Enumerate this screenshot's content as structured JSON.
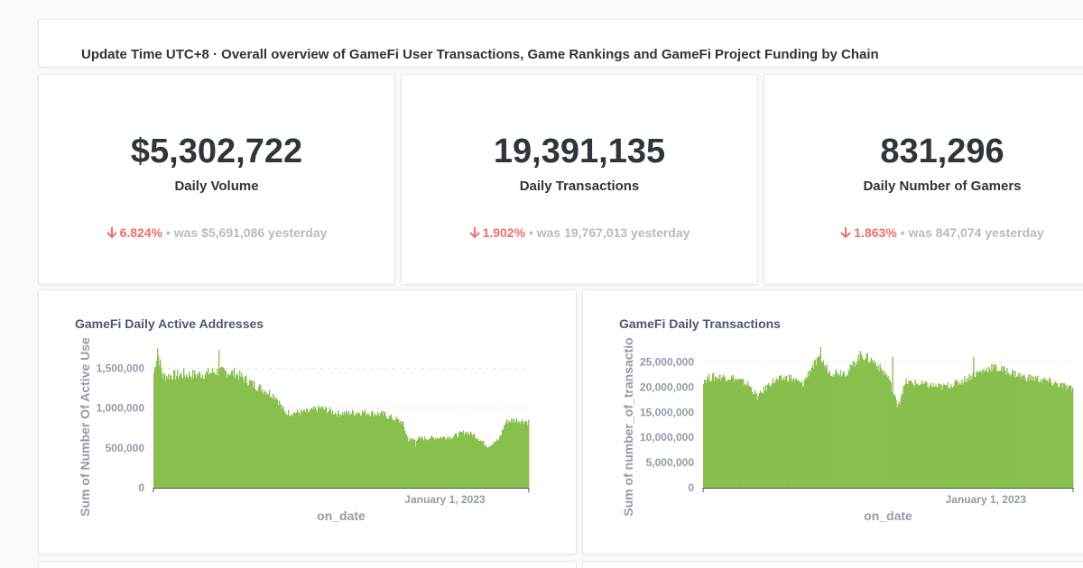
{
  "header": {
    "title": "Update Time UTC+8 · Overall overview of GameFi User Transactions, Game Rankings and GameFi Project Funding by Chain"
  },
  "kpis": [
    {
      "value": "$5,302,722",
      "label": "Daily Volume",
      "change": "6.824%",
      "was": "was $5,691,086",
      "suffix": "yesterday"
    },
    {
      "value": "19,391,135",
      "label": "Daily Transactions",
      "change": "1.902%",
      "was": "was 19,767,013",
      "suffix": "yesterday"
    },
    {
      "value": "831,296",
      "label": "Daily Number of Gamers",
      "change": "1.863%",
      "was": "was 847,074",
      "suffix": "yesterday"
    }
  ],
  "colors": {
    "bar": "#88bf4d",
    "down": "#ed6e6e",
    "muted": "#b8bbc3",
    "axis_text": "#949aab"
  },
  "chart_data": [
    {
      "type": "bar",
      "title": "GameFi Daily Active Addresses",
      "xlabel": "on_date",
      "ylabel": "Sum of Number Of Active Use",
      "ylim": [
        0,
        1800000
      ],
      "yticks": [
        0,
        500000,
        1000000,
        1500000
      ],
      "ytick_labels": [
        "0",
        "500,000",
        "1,000,000",
        "1,500,000"
      ],
      "xtick_labels": [
        "January 1, 2023"
      ],
      "grid": true,
      "anchors": [
        [
          0,
          1450000
        ],
        [
          4,
          1700000
        ],
        [
          10,
          1400000
        ],
        [
          30,
          1420000
        ],
        [
          50,
          1420000
        ],
        [
          70,
          1460000
        ],
        [
          90,
          1440000
        ],
        [
          110,
          1300000
        ],
        [
          135,
          1150000
        ],
        [
          145,
          940000
        ],
        [
          170,
          950000
        ],
        [
          185,
          1000000
        ],
        [
          205,
          930000
        ],
        [
          230,
          950000
        ],
        [
          255,
          920000
        ],
        [
          275,
          820000
        ],
        [
          282,
          600000
        ],
        [
          300,
          620000
        ],
        [
          330,
          640000
        ],
        [
          345,
          700000
        ],
        [
          355,
          660000
        ],
        [
          370,
          520000
        ],
        [
          382,
          600000
        ],
        [
          390,
          830000
        ],
        [
          400,
          850000
        ],
        [
          415,
          830000
        ]
      ],
      "jitter": 0.05,
      "spikes": [
        [
          4,
          1750000
        ],
        [
          33,
          1500000
        ],
        [
          72,
          1730000
        ],
        [
          290,
          520000
        ]
      ],
      "n_bars": 416,
      "tick_index": 287
    },
    {
      "type": "bar",
      "title": "GameFi Daily Transactions",
      "xlabel": "on_date",
      "ylabel": "Sum of number_of_transactio",
      "ylim": [
        0,
        28500000
      ],
      "yticks": [
        0,
        5000000,
        10000000,
        15000000,
        20000000,
        25000000
      ],
      "ytick_labels": [
        "0",
        "5,000,000",
        "10,000,000",
        "15,000,000",
        "20,000,000",
        "25,000,000"
      ],
      "xtick_labels": [
        "January 1, 2023"
      ],
      "grid": true,
      "anchors": [
        [
          0,
          21500000
        ],
        [
          10,
          22000000
        ],
        [
          30,
          22000000
        ],
        [
          50,
          20500000
        ],
        [
          60,
          18000000
        ],
        [
          75,
          21000000
        ],
        [
          95,
          22000000
        ],
        [
          110,
          20500000
        ],
        [
          120,
          24000000
        ],
        [
          130,
          25500000
        ],
        [
          140,
          23000000
        ],
        [
          160,
          23000000
        ],
        [
          175,
          26500000
        ],
        [
          190,
          25000000
        ],
        [
          205,
          22000000
        ],
        [
          215,
          16500000
        ],
        [
          225,
          21000000
        ],
        [
          245,
          20500000
        ],
        [
          265,
          20000000
        ],
        [
          285,
          21000000
        ],
        [
          300,
          22500000
        ],
        [
          320,
          24000000
        ],
        [
          340,
          23000000
        ],
        [
          355,
          22000000
        ],
        [
          375,
          21500000
        ],
        [
          395,
          20500000
        ],
        [
          410,
          19500000
        ]
      ],
      "jitter": 0.04,
      "spikes": [
        [
          130,
          28000000
        ],
        [
          172,
          26500000
        ],
        [
          210,
          26000000
        ],
        [
          218,
          16500000
        ],
        [
          300,
          26000000
        ]
      ],
      "n_bars": 411,
      "tick_index": 278
    }
  ]
}
